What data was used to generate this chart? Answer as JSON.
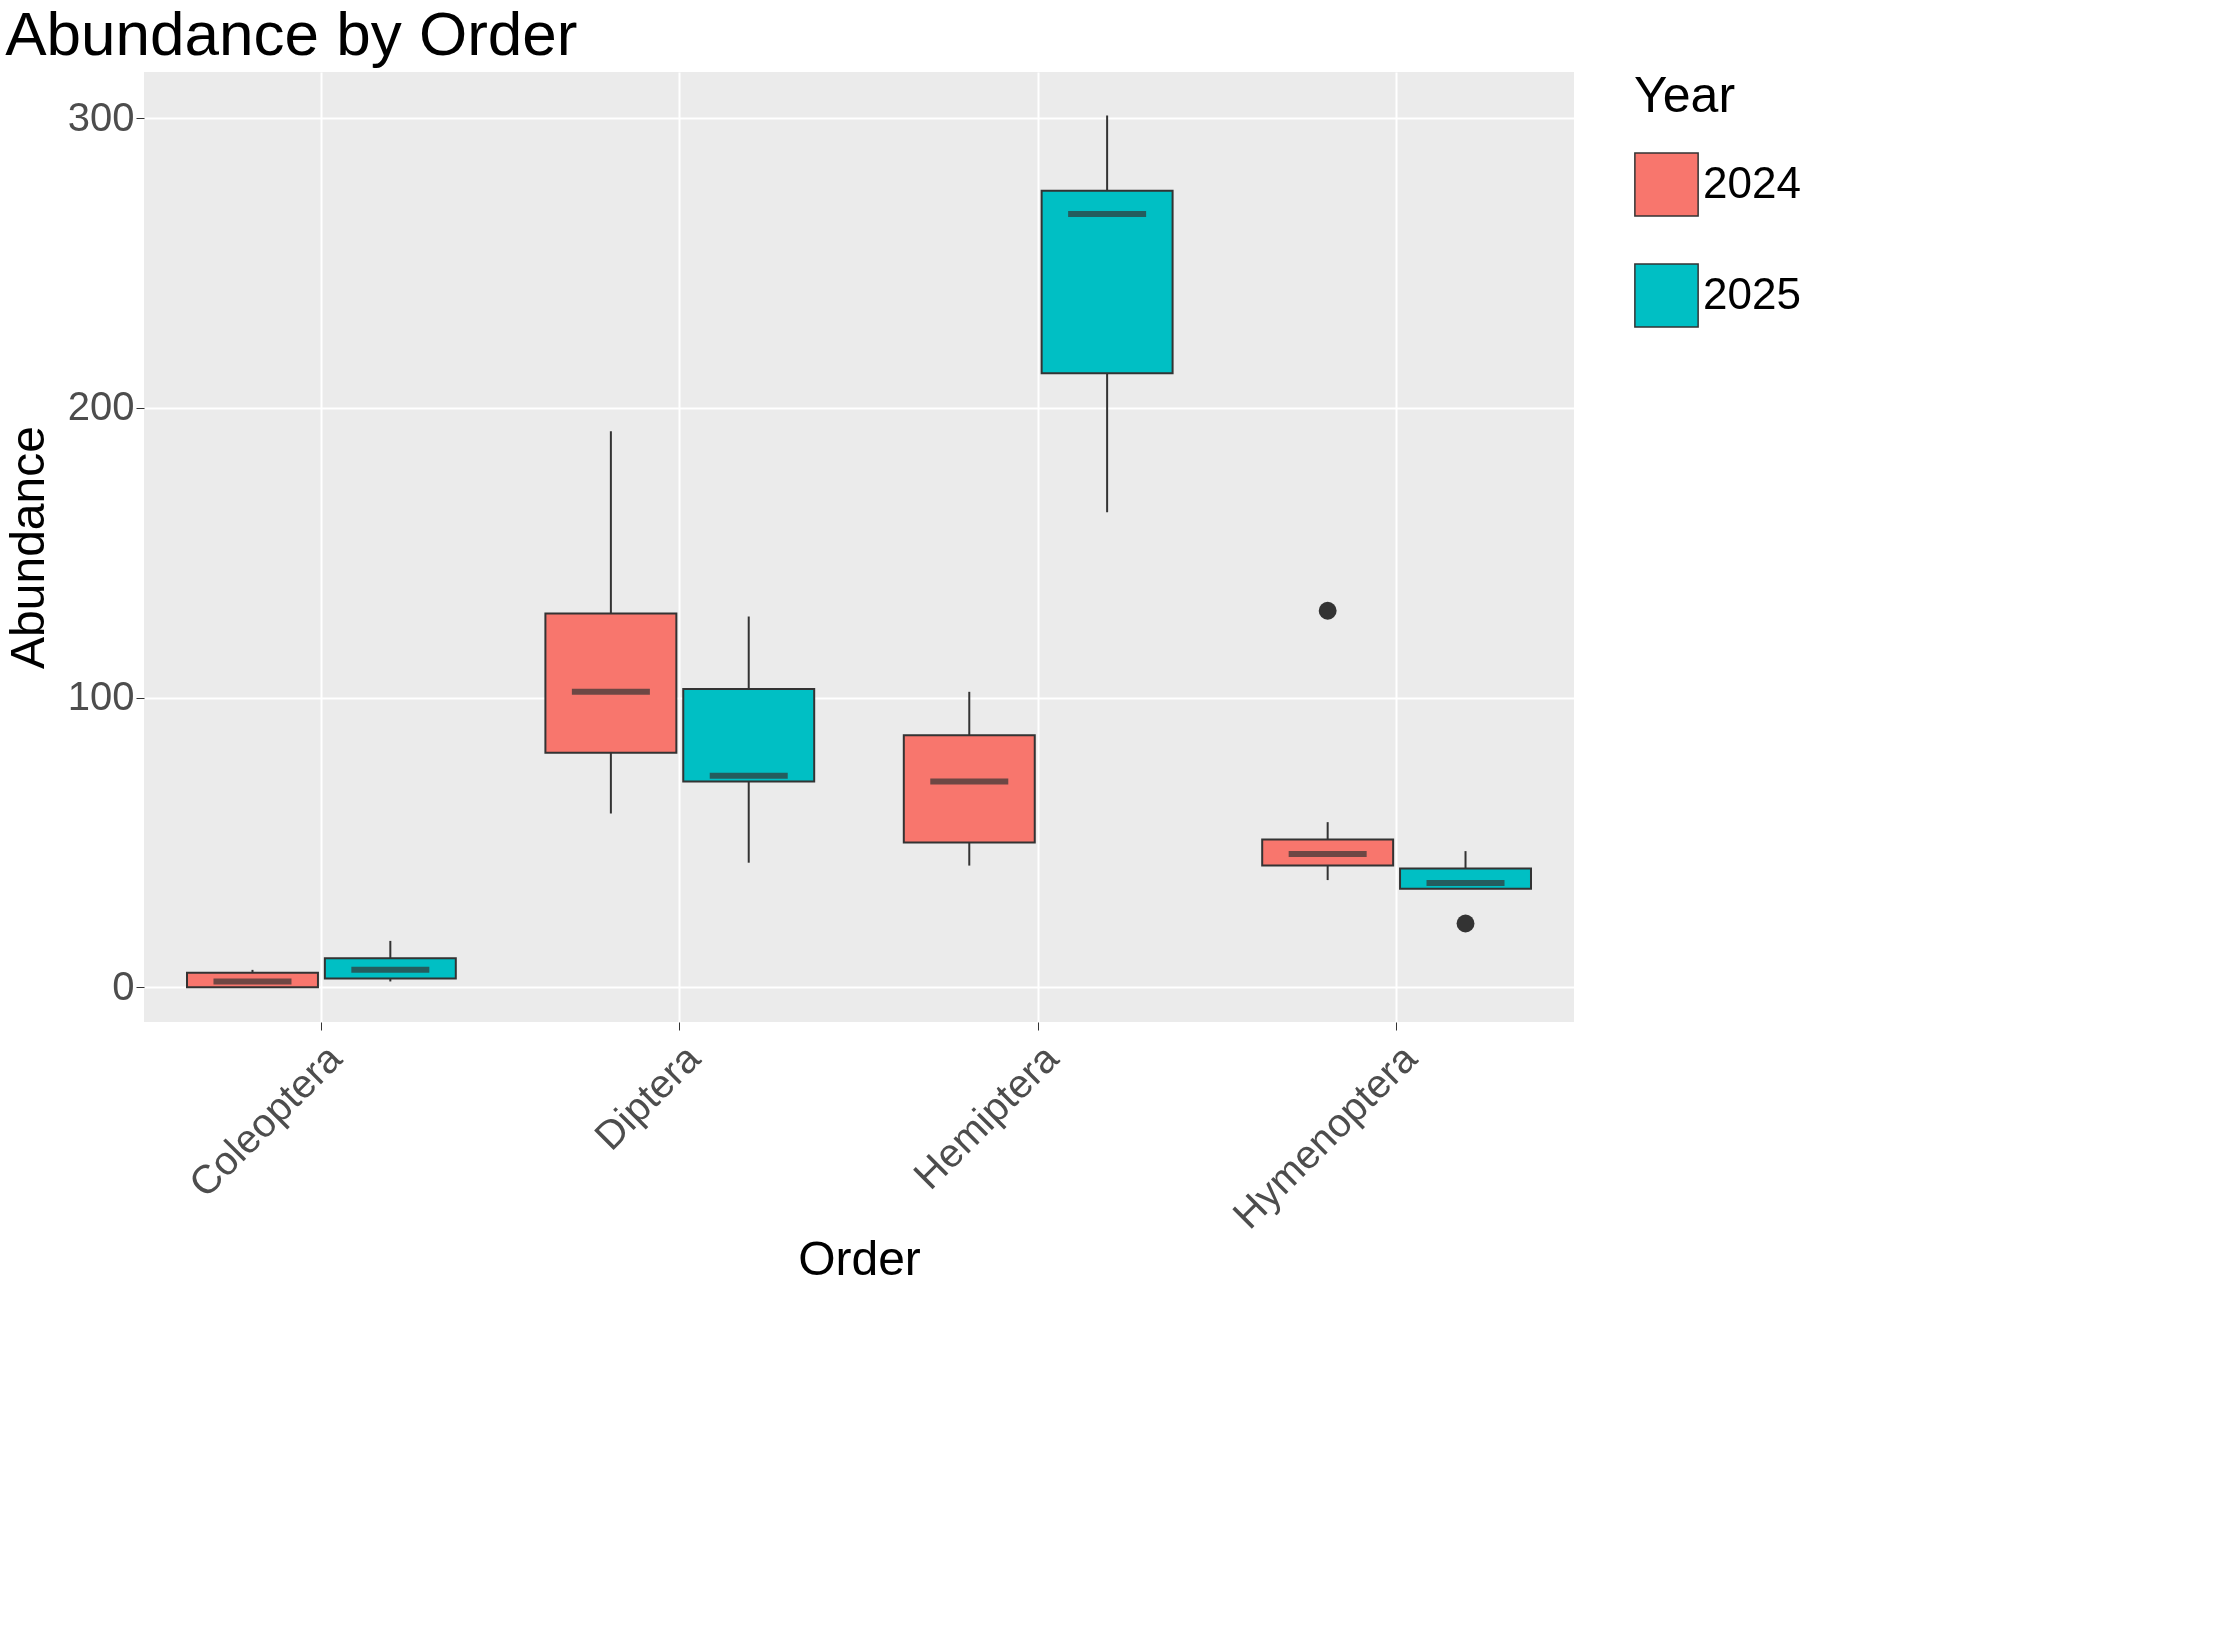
{
  "chart_data": {
    "type": "box",
    "title": "Abundance by Order",
    "xlabel": "Order",
    "ylabel": "Abundance",
    "legend_title": "Year",
    "categories": [
      "Coleoptera",
      "Diptera",
      "Hemiptera",
      "Hymenoptera"
    ],
    "series": [
      {
        "name": "2024",
        "color": "#f8766d",
        "boxes": [
          {
            "low": 0,
            "q1": 0,
            "median": 2,
            "q3": 5,
            "high": 6
          },
          {
            "low": 60,
            "q1": 81,
            "median": 102,
            "q3": 129,
            "high": 192
          },
          {
            "low": 42,
            "q1": 50,
            "median": 71,
            "q3": 87,
            "high": 102
          },
          {
            "low": 37,
            "q1": 42,
            "median": 46,
            "q3": 51,
            "high": 57,
            "outliers": [
              130
            ]
          }
        ]
      },
      {
        "name": "2025",
        "color": "#00bfc4",
        "boxes": [
          {
            "low": 2,
            "q1": 3,
            "median": 6,
            "q3": 10,
            "high": 16
          },
          {
            "low": 43,
            "q1": 71,
            "median": 73,
            "q3": 103,
            "high": 128
          },
          {
            "low": 164,
            "q1": 212,
            "median": 267,
            "q3": 275,
            "high": 301
          },
          {
            "low": 34,
            "q1": 34,
            "median": 36,
            "q3": 41,
            "high": 47,
            "outliers": [
              22
            ]
          }
        ]
      }
    ],
    "ylim": [
      -12,
      316
    ],
    "yticks": [
      0,
      100,
      200,
      300
    ],
    "grid": true,
    "legend": "right"
  }
}
